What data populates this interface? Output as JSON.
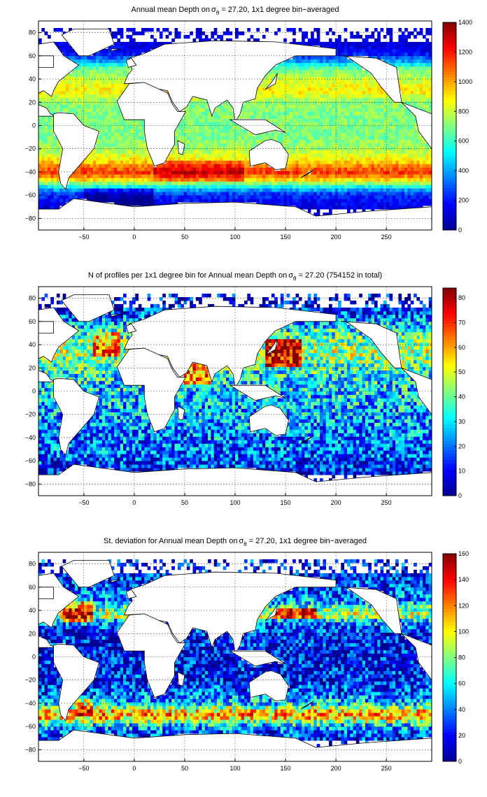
{
  "colormap": [
    "#00008f",
    "#0000ff",
    "#0080ff",
    "#00ffff",
    "#80ff80",
    "#ffff00",
    "#ff8000",
    "#ff0000",
    "#800000"
  ],
  "land_color": "#ffffff",
  "chart_data": [
    {
      "type": "heatmap",
      "title": "Annual mean Depth onσθ = 27.20, 1x1 degree bin−averaged",
      "title_parts": [
        "Annual mean Depth on",
        "σ",
        "θ",
        " = 27.20, 1x1 degree bin−averaged"
      ],
      "variable": "depth",
      "xlim": [
        -95,
        295
      ],
      "ylim": [
        -90,
        90
      ],
      "xticks": [
        -50,
        0,
        50,
        100,
        150,
        200,
        250
      ],
      "yticks": [
        -80,
        -60,
        -40,
        -20,
        0,
        20,
        40,
        60,
        80
      ],
      "colorbar": {
        "range": [
          0,
          1400
        ],
        "ticks": [
          0,
          200,
          400,
          600,
          800,
          1000,
          1200,
          1400
        ]
      },
      "grid": true,
      "zonal_profile": {
        "lat": [
          -75,
          -68,
          -62,
          -58,
          -54,
          -50,
          -45,
          -40,
          -35,
          -30,
          -20,
          -10,
          0,
          10,
          20,
          30,
          40,
          50,
          55,
          60,
          65,
          70
        ],
        "value": [
          100,
          150,
          200,
          280,
          450,
          700,
          1000,
          1150,
          1050,
          900,
          750,
          700,
          700,
          700,
          720,
          900,
          800,
          650,
          400,
          250,
          150,
          120
        ]
      }
    },
    {
      "type": "heatmap",
      "title": "N of profiles per 1x1 degree bin for Annual mean Depth onσθ = 27.20 (754152 in total)",
      "title_parts": [
        "N of profiles per 1x1 degree bin for Annual mean Depth on",
        "σ",
        "θ",
        " = 27.20 (754152 in total)"
      ],
      "variable": "count",
      "total_profiles": 754152,
      "xlim": [
        -95,
        295
      ],
      "ylim": [
        -90,
        90
      ],
      "xticks": [
        -50,
        0,
        50,
        100,
        150,
        200,
        250
      ],
      "yticks": [
        -80,
        -60,
        -40,
        -20,
        0,
        20,
        40,
        60,
        80
      ],
      "colorbar": {
        "range": [
          0,
          84
        ],
        "ticks": [
          0,
          10,
          20,
          30,
          40,
          50,
          60,
          70,
          80
        ]
      },
      "grid": true,
      "zonal_profile": {
        "lat": [
          -75,
          -65,
          -55,
          -45,
          -35,
          -25,
          -15,
          -5,
          5,
          15,
          25,
          35,
          45,
          55,
          65,
          75
        ],
        "value": [
          5,
          12,
          18,
          20,
          22,
          24,
          26,
          28,
          30,
          32,
          40,
          45,
          38,
          30,
          18,
          8
        ]
      }
    },
    {
      "type": "heatmap",
      "title": "St. deviation for Annual mean Depth onσθ = 27.20, 1x1 degree bin−averaged",
      "title_parts": [
        "St. deviation for Annual mean Depth on",
        "σ",
        "θ",
        " = 27.20, 1x1 degree bin−averaged"
      ],
      "variable": "std",
      "xlim": [
        -95,
        295
      ],
      "ylim": [
        -90,
        90
      ],
      "xticks": [
        -50,
        0,
        50,
        100,
        150,
        200,
        250
      ],
      "yticks": [
        -80,
        -60,
        -40,
        -20,
        0,
        20,
        40,
        60,
        80
      ],
      "colorbar": {
        "range": [
          0,
          160
        ],
        "ticks": [
          0,
          20,
          40,
          60,
          80,
          100,
          120,
          140,
          160
        ]
      },
      "grid": true,
      "zonal_profile": {
        "lat": [
          -75,
          -65,
          -58,
          -52,
          -48,
          -45,
          -40,
          -30,
          -20,
          0,
          20,
          30,
          36,
          42,
          50,
          60,
          70
        ],
        "value": [
          20,
          30,
          60,
          110,
          120,
          90,
          55,
          30,
          22,
          18,
          22,
          40,
          95,
          70,
          40,
          30,
          20
        ]
      }
    }
  ]
}
